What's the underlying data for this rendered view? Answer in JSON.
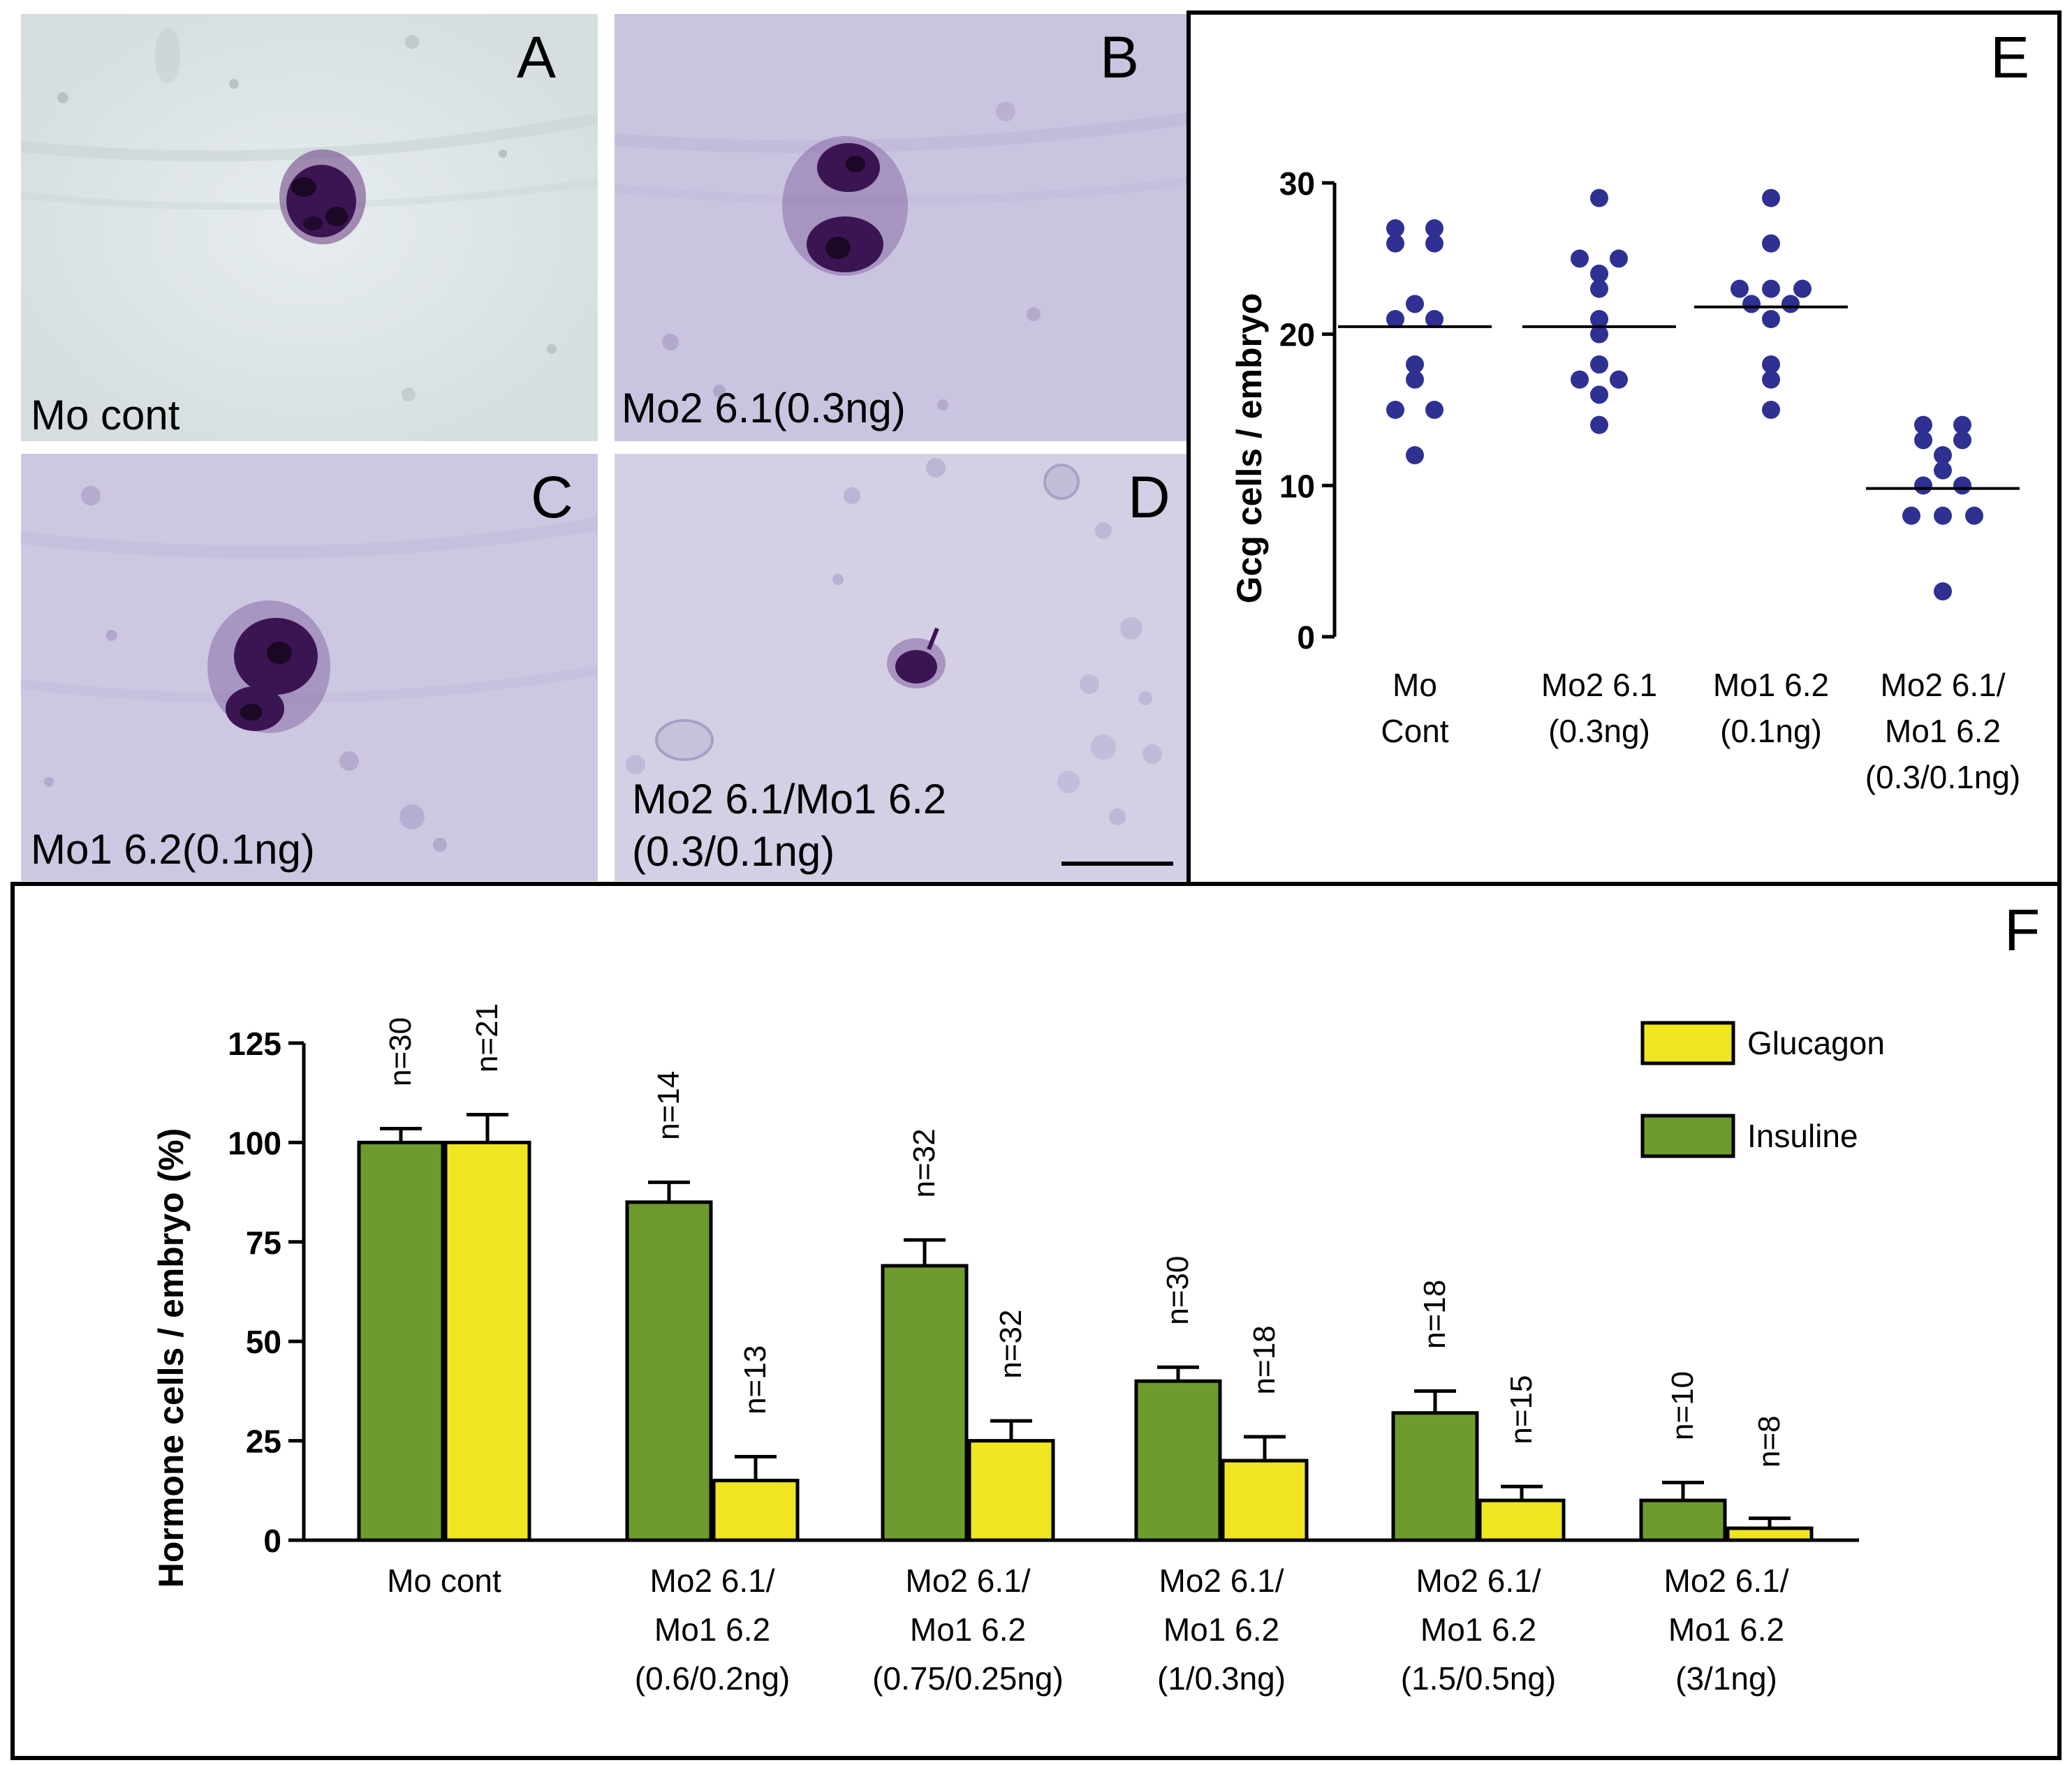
{
  "panels": {
    "A": {
      "label": "A",
      "caption": "Mo cont"
    },
    "B": {
      "label": "B",
      "caption": "Mo2 6.1(0.3ng)"
    },
    "C": {
      "label": "C",
      "caption": "Mo1 6.2(0.1ng)"
    },
    "D": {
      "label": "D",
      "caption_line1": "Mo2 6.1/Mo1 6.2",
      "caption_line2": "(0.3/0.1ng)"
    },
    "E": {
      "label": "E"
    },
    "F": {
      "label": "F"
    }
  },
  "colors": {
    "scatter_point": "#2e3192",
    "glucagon": "#f0e523",
    "insuline": "#6e9b2d",
    "stain_dark": "#3b1552",
    "micrograph_bg_A": "#dde4e6",
    "micrograph_bg_B": "#c7c0df"
  },
  "chart_data": [
    {
      "panel": "E",
      "type": "scatter",
      "ylabel": "Gcg cells / embryo",
      "ylim": [
        0,
        30
      ],
      "yticks": [
        "0",
        "10",
        "20",
        "30"
      ],
      "categories": [
        [
          "Mo",
          "Cont"
        ],
        [
          "Mo2 6.1",
          "(0.3ng)"
        ],
        [
          "Mo1 6.2",
          "(0.1ng)"
        ],
        [
          "Mo2 6.1/",
          "Mo1 6.2",
          "(0.3/0.1ng)"
        ]
      ],
      "points": [
        [
          27,
          27,
          26,
          26,
          22,
          21,
          21,
          18,
          17,
          15,
          15,
          12
        ],
        [
          29,
          25,
          25,
          24,
          23,
          21,
          20,
          18,
          17,
          17,
          16,
          14
        ],
        [
          29,
          26,
          23,
          23,
          23,
          22,
          22,
          21,
          18,
          17,
          15
        ],
        [
          14,
          14,
          13,
          13,
          12,
          11,
          10,
          10,
          8,
          8,
          8,
          3
        ]
      ],
      "means": [
        20.5,
        20.5,
        21.8,
        9.8
      ]
    },
    {
      "panel": "F",
      "type": "bar",
      "ylabel": "Hormone cells / embryo (%)",
      "ylim": [
        0,
        125
      ],
      "yticks": [
        "0",
        "25",
        "50",
        "75",
        "100",
        "125"
      ],
      "categories": [
        [
          "Mo cont"
        ],
        [
          "Mo2 6.1/",
          "Mo1 6.2",
          "(0.6/0.2ng)"
        ],
        [
          "Mo2 6.1/",
          "Mo1 6.2",
          "(0.75/0.25ng)"
        ],
        [
          "Mo2 6.1/",
          "Mo1 6.2",
          "(1/0.3ng)"
        ],
        [
          "Mo2 6.1/",
          "Mo1 6.2",
          "(1.5/0.5ng)"
        ],
        [
          "Mo2 6.1/",
          "Mo1 6.2",
          "(3/1ng)"
        ]
      ],
      "series": [
        {
          "name": "Insuline",
          "values": [
            100,
            85,
            69,
            40,
            32,
            10
          ],
          "errors": [
            3.5,
            5,
            6.5,
            3.5,
            5.5,
            4.5
          ],
          "n": [
            "n=30",
            "n=14",
            "n=32",
            "n=30",
            "n=18",
            "n=10"
          ]
        },
        {
          "name": "Glucagon",
          "values": [
            100,
            15,
            25,
            20,
            10,
            3
          ],
          "errors": [
            7,
            6,
            5,
            6,
            3.5,
            2.5
          ],
          "n": [
            "n=21",
            "n=13",
            "n=32",
            "n=18",
            "n=15",
            "n=8"
          ]
        }
      ],
      "legend": [
        "Glucagon",
        "Insuline"
      ],
      "legend_position": "top-right"
    }
  ]
}
